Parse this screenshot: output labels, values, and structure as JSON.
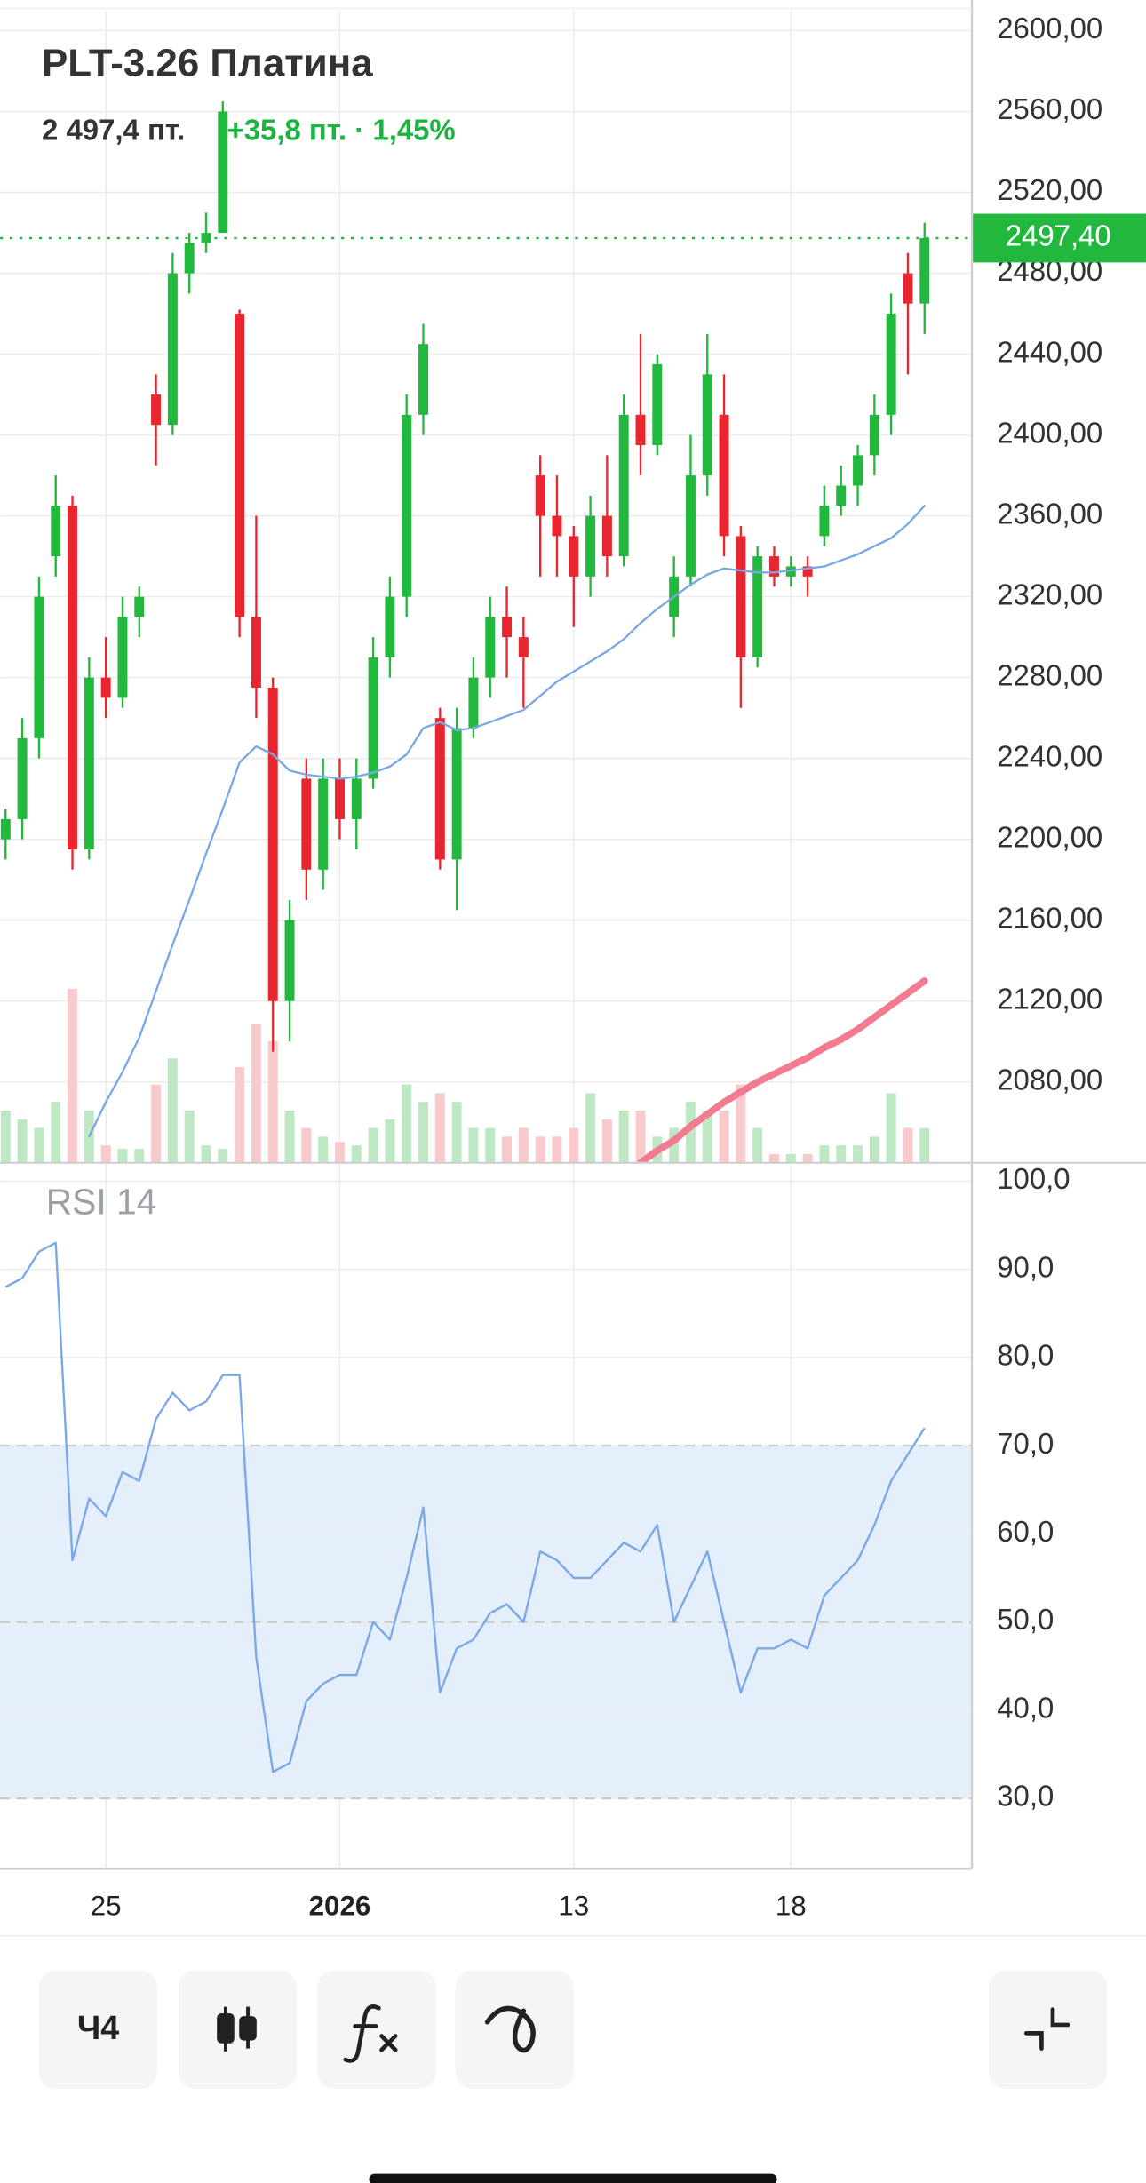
{
  "chart_data": [
    {
      "type": "candlestick",
      "title": "PLT-3.26 Платина",
      "price_label": "2 497,4 пт.",
      "change_label": "+35,8 пт. · 1,45%",
      "categories": [
        null,
        null,
        null,
        null,
        null,
        null,
        "25",
        null,
        null,
        null,
        null,
        null,
        null,
        null,
        null,
        null,
        null,
        null,
        null,
        null,
        "2026",
        null,
        null,
        null,
        null,
        null,
        null,
        null,
        null,
        null,
        null,
        null,
        null,
        null,
        "13",
        null,
        null,
        null,
        null,
        null,
        null,
        null,
        null,
        null,
        null,
        null,
        null,
        "18",
        null,
        null,
        null,
        null,
        null,
        null,
        null,
        null
      ],
      "ohlc": [
        [
          2200,
          2215,
          2190,
          2210
        ],
        [
          2210,
          2260,
          2200,
          2250
        ],
        [
          2250,
          2330,
          2240,
          2320
        ],
        [
          2340,
          2380,
          2330,
          2365
        ],
        [
          2365,
          2370,
          2185,
          2195
        ],
        [
          2195,
          2290,
          2190,
          2280
        ],
        [
          2280,
          2300,
          2260,
          2270
        ],
        [
          2270,
          2320,
          2265,
          2310
        ],
        [
          2310,
          2325,
          2300,
          2320
        ],
        [
          2420,
          2430,
          2385,
          2405
        ],
        [
          2405,
          2490,
          2400,
          2480
        ],
        [
          2480,
          2500,
          2470,
          2495
        ],
        [
          2495,
          2510,
          2490,
          2500
        ],
        [
          2500,
          2565,
          2500,
          2560
        ],
        [
          2460,
          2462,
          2300,
          2310
        ],
        [
          2310,
          2360,
          2260,
          2275
        ],
        [
          2275,
          2280,
          2095,
          2120
        ],
        [
          2120,
          2170,
          2100,
          2160
        ],
        [
          2230,
          2240,
          2170,
          2185
        ],
        [
          2185,
          2240,
          2175,
          2230
        ],
        [
          2230,
          2240,
          2200,
          2210
        ],
        [
          2210,
          2240,
          2195,
          2230
        ],
        [
          2230,
          2300,
          2225,
          2290
        ],
        [
          2290,
          2330,
          2280,
          2320
        ],
        [
          2320,
          2420,
          2310,
          2410
        ],
        [
          2410,
          2455,
          2400,
          2445
        ],
        [
          2260,
          2265,
          2185,
          2190
        ],
        [
          2190,
          2265,
          2165,
          2255
        ],
        [
          2255,
          2290,
          2250,
          2280
        ],
        [
          2280,
          2320,
          2270,
          2310
        ],
        [
          2310,
          2325,
          2280,
          2300
        ],
        [
          2300,
          2310,
          2265,
          2290
        ],
        [
          2380,
          2390,
          2330,
          2360
        ],
        [
          2360,
          2380,
          2330,
          2350
        ],
        [
          2350,
          2355,
          2305,
          2330
        ],
        [
          2330,
          2370,
          2320,
          2360
        ],
        [
          2360,
          2390,
          2330,
          2340
        ],
        [
          2340,
          2420,
          2335,
          2410
        ],
        [
          2410,
          2450,
          2380,
          2395
        ],
        [
          2395,
          2440,
          2390,
          2435
        ],
        [
          2310,
          2340,
          2300,
          2330
        ],
        [
          2330,
          2400,
          2325,
          2380
        ],
        [
          2380,
          2450,
          2370,
          2430
        ],
        [
          2410,
          2430,
          2340,
          2350
        ],
        [
          2350,
          2355,
          2265,
          2290
        ],
        [
          2290,
          2345,
          2285,
          2340
        ],
        [
          2340,
          2345,
          2325,
          2330
        ],
        [
          2330,
          2340,
          2325,
          2335
        ],
        [
          2335,
          2340,
          2320,
          2330
        ],
        [
          2350,
          2375,
          2345,
          2365
        ],
        [
          2365,
          2385,
          2360,
          2375
        ],
        [
          2375,
          2395,
          2365,
          2390
        ],
        [
          2390,
          2420,
          2380,
          2410
        ],
        [
          2410,
          2470,
          2400,
          2460
        ],
        [
          2480,
          2490,
          2430,
          2465
        ],
        [
          2465,
          2505,
          2450,
          2497.4
        ]
      ],
      "up_color": "#22b83e",
      "down_color": "#e8262f",
      "volume": {
        "values": [
          30,
          25,
          20,
          35,
          100,
          30,
          10,
          8,
          8,
          45,
          60,
          30,
          10,
          8,
          55,
          80,
          70,
          30,
          20,
          15,
          12,
          10,
          20,
          25,
          45,
          35,
          40,
          35,
          20,
          20,
          15,
          20,
          15,
          15,
          20,
          40,
          25,
          30,
          30,
          15,
          20,
          35,
          30,
          30,
          45,
          20,
          5,
          5,
          5,
          10,
          10,
          10,
          15,
          40,
          20,
          20
        ],
        "up_color": "#bde8c3",
        "down_color": "#f8cacc"
      },
      "series": [
        {
          "color": "#7aa7e6",
          "width": 1.5,
          "values": [
            null,
            null,
            null,
            null,
            null,
            2053,
            2070,
            2085,
            2102,
            2125,
            2148,
            2170,
            2193,
            2215,
            2238,
            2246,
            2242,
            2234,
            2232,
            2231,
            2230,
            2231,
            2233,
            2236,
            2242,
            2255,
            2258,
            2254,
            2255,
            2258,
            2261,
            2264,
            2271,
            2278,
            2283,
            2288,
            2293,
            2299,
            2307,
            2314,
            2320,
            2326,
            2331,
            2334,
            2333,
            2332,
            2332,
            2333,
            2334,
            2335,
            2338,
            2341,
            2345,
            2349,
            2356,
            2365
          ]
        },
        {
          "color": "#f27b90",
          "width": 5,
          "values": [
            null,
            null,
            null,
            null,
            null,
            null,
            null,
            null,
            null,
            null,
            null,
            null,
            null,
            null,
            null,
            null,
            null,
            null,
            null,
            null,
            null,
            null,
            null,
            null,
            null,
            null,
            null,
            null,
            null,
            null,
            null,
            null,
            null,
            null,
            null,
            null,
            null,
            null,
            2040,
            2046,
            2051,
            2058,
            2064,
            2070,
            2075,
            2080,
            2084,
            2088,
            2092,
            2097,
            2101,
            2106,
            2112,
            2118,
            2124,
            2130
          ]
        }
      ],
      "last": {
        "value": 2497.4,
        "label": "2497,40"
      },
      "ylim": [
        2040,
        2610
      ],
      "yticks": [
        {
          "value": 2600,
          "label": "2600,00"
        },
        {
          "value": 2560,
          "label": "2560,00"
        },
        {
          "value": 2520,
          "label": "2520,00"
        },
        {
          "value": 2480,
          "label": "2480,00"
        },
        {
          "value": 2440,
          "label": "2440,00"
        },
        {
          "value": 2400,
          "label": "2400,00"
        },
        {
          "value": 2360,
          "label": "2360,00"
        },
        {
          "value": 2320,
          "label": "2320,00"
        },
        {
          "value": 2280,
          "label": "2280,00"
        },
        {
          "value": 2240,
          "label": "2240,00"
        },
        {
          "value": 2200,
          "label": "2200,00"
        },
        {
          "value": 2160,
          "label": "2160,00"
        },
        {
          "value": 2120,
          "label": "2120,00"
        },
        {
          "value": 2080,
          "label": "2080,00"
        }
      ],
      "grid": true
    },
    {
      "type": "line",
      "title": "RSI 14",
      "values": [
        88,
        89,
        92,
        93,
        57,
        64,
        62,
        67,
        66,
        73,
        76,
        74,
        75,
        78,
        78,
        46,
        33,
        34,
        41,
        43,
        44,
        44,
        50,
        48,
        55,
        63,
        42,
        47,
        48,
        51,
        52,
        50,
        58,
        57,
        55,
        55,
        57,
        59,
        58,
        61,
        50,
        54,
        58,
        50,
        42,
        47,
        47,
        48,
        47,
        53,
        55,
        57,
        61,
        66,
        69,
        72
      ],
      "color": "#7aa7e6",
      "band": [
        30,
        70
      ],
      "band_color": "#e5effc",
      "levels": [
        30,
        50,
        70
      ],
      "ylim": [
        22,
        100.5
      ],
      "yticks": [
        {
          "value": 100,
          "label": "100,0"
        },
        {
          "value": 90,
          "label": "90,0"
        },
        {
          "value": 80,
          "label": "80,0"
        },
        {
          "value": 70,
          "label": "70,0"
        },
        {
          "value": 60,
          "label": "60,0"
        },
        {
          "value": 50,
          "label": "50,0"
        },
        {
          "value": 40,
          "label": "40,0"
        },
        {
          "value": 30,
          "label": "30,0"
        }
      ],
      "grid": true
    }
  ],
  "toolbar": {
    "interval": "Ч4"
  }
}
